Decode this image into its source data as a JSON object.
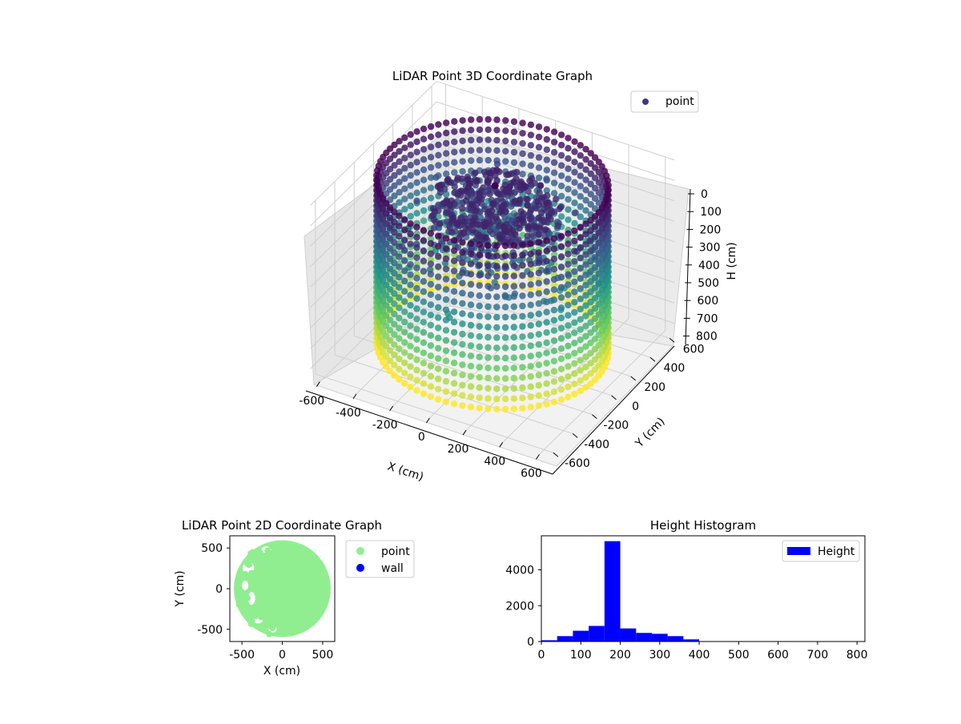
{
  "chart_data": [
    {
      "type": "scatter3d",
      "title": "LiDAR Point 3D Coordinate Graph",
      "xlabel": "X (cm)",
      "ylabel": "Y (cm)",
      "zlabel": "H (cm)",
      "xticks": [
        -600,
        -400,
        -200,
        0,
        200,
        400,
        600
      ],
      "yticks": [
        -600,
        -400,
        -200,
        0,
        200,
        400,
        600
      ],
      "zticks": [
        0,
        100,
        200,
        300,
        400,
        500,
        600,
        700,
        800
      ],
      "xlim": [
        -650,
        650
      ],
      "ylim": [
        -650,
        650
      ],
      "zlim": [
        0,
        850
      ],
      "z_inverted": true,
      "colormap": "viridis",
      "legend": {
        "position": "top-right",
        "entries": [
          {
            "label": "point",
            "color": "#3e3a84"
          }
        ]
      },
      "ring": {
        "radius_cm": 560,
        "height_min_cm": 0,
        "height_max_cm": 800
      },
      "cluster": {
        "center_x_cm": 30,
        "center_y_cm": -30,
        "radius_cm": 320,
        "height_min_cm": 80,
        "height_max_cm": 380
      },
      "grid": true
    },
    {
      "type": "scatter",
      "title": "LiDAR Point 2D Coordinate Graph",
      "xlabel": "X (cm)",
      "ylabel": "Y (cm)",
      "xticks": [
        -500,
        0,
        500
      ],
      "yticks": [
        500,
        0,
        -500
      ],
      "xlim": [
        -650,
        650
      ],
      "ylim": [
        -650,
        650
      ],
      "series": [
        {
          "name": "point",
          "color": "#90ee90"
        },
        {
          "name": "wall",
          "color": "#0000ff"
        }
      ],
      "legend": {
        "position": "outside-right"
      }
    },
    {
      "type": "bar",
      "title": "Height Histogram",
      "xlim": [
        0,
        820
      ],
      "ylim": [
        0,
        5900
      ],
      "xticks": [
        0,
        100,
        200,
        300,
        400,
        500,
        600,
        700,
        800
      ],
      "yticks": [
        0,
        2000,
        4000
      ],
      "bin_edges": [
        0,
        40,
        80,
        120,
        160,
        200,
        240,
        280,
        320,
        360,
        400,
        440,
        480,
        520,
        560,
        600,
        640,
        680,
        720,
        760,
        800
      ],
      "values": [
        70,
        300,
        600,
        870,
        5600,
        730,
        480,
        430,
        300,
        120,
        10,
        5,
        5,
        5,
        5,
        5,
        5,
        5,
        5,
        5
      ],
      "series": [
        {
          "name": "Height",
          "color": "#0000ff"
        }
      ],
      "legend": {
        "position": "top-right"
      }
    }
  ]
}
